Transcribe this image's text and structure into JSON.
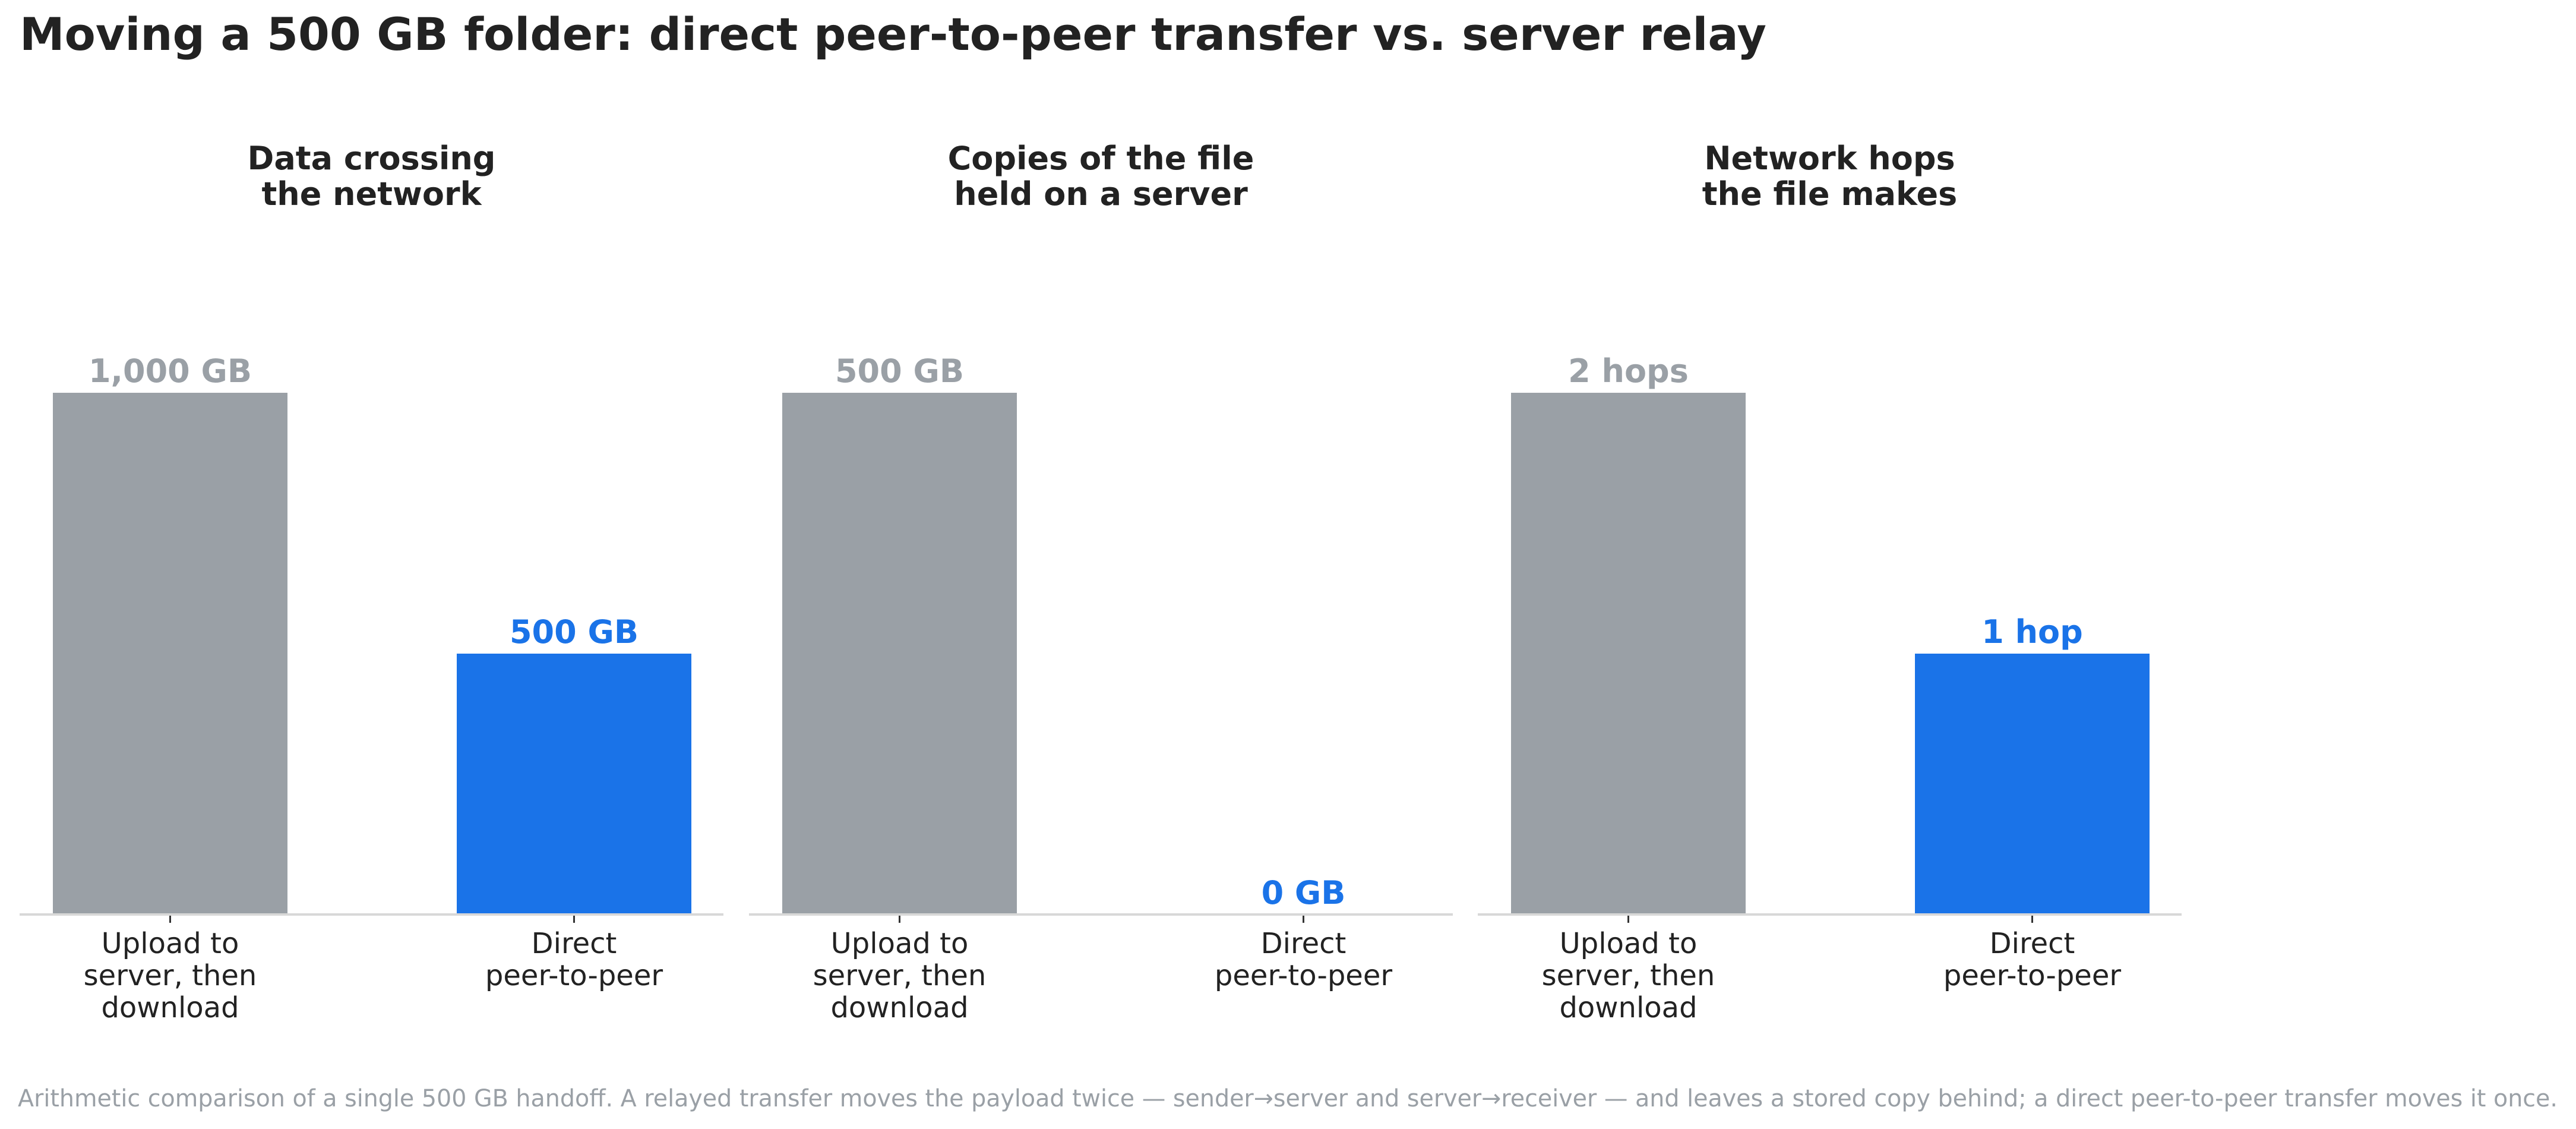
{
  "title": "Moving a 500 GB folder: direct peer-to-peer transfer vs. server relay",
  "caption": "Arithmetic comparison of a single 500 GB handoff. A relayed transfer moves the payload twice — sender→server and server→receiver — and leaves a stored copy behind; a direct peer-to-peer transfer moves it once.",
  "colors": {
    "relay": "#9aa0a6",
    "direct": "#1a73e8",
    "text": "#222222",
    "axis": "#d8d8d8"
  },
  "chart_data": [
    {
      "type": "bar",
      "title": [
        "Data crossing",
        "the network"
      ],
      "categories": [
        [
          "Upload to",
          "server, then",
          "download"
        ],
        [
          "Direct",
          "peer-to-peer"
        ]
      ],
      "values": [
        1000,
        500
      ],
      "value_labels": [
        "1,000 GB",
        "500 GB"
      ],
      "unit": "GB",
      "xlabel": "",
      "ylabel": "",
      "ylim": [
        0,
        1000
      ],
      "grid": false
    },
    {
      "type": "bar",
      "title": [
        "Copies of the file",
        "held on a server"
      ],
      "categories": [
        [
          "Upload to",
          "server, then",
          "download"
        ],
        [
          "Direct",
          "peer-to-peer"
        ]
      ],
      "values": [
        500,
        0
      ],
      "value_labels": [
        "500 GB",
        "0 GB"
      ],
      "unit": "GB",
      "xlabel": "",
      "ylabel": "",
      "ylim": [
        0,
        500
      ],
      "grid": false
    },
    {
      "type": "bar",
      "title": [
        "Network hops",
        "the file makes"
      ],
      "categories": [
        [
          "Upload to",
          "server, then",
          "download"
        ],
        [
          "Direct",
          "peer-to-peer"
        ]
      ],
      "values": [
        2,
        1
      ],
      "value_labels": [
        "2 hops",
        "1 hop"
      ],
      "unit": "hops",
      "xlabel": "",
      "ylabel": "",
      "ylim": [
        0,
        2
      ],
      "grid": false
    }
  ]
}
